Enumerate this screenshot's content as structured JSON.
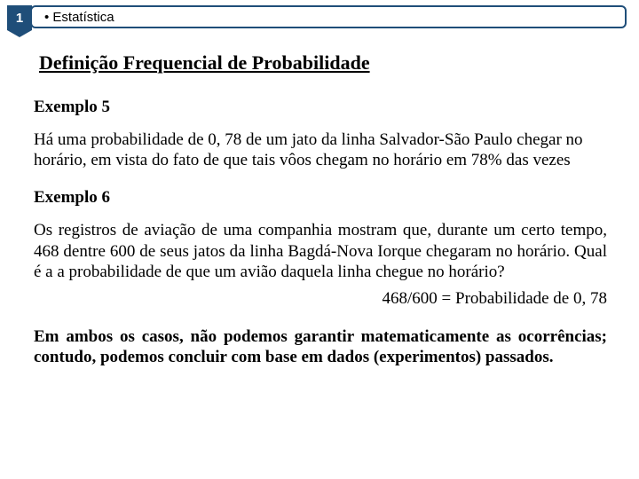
{
  "header": {
    "number": "1",
    "label": "• Estatística"
  },
  "section_title": "Definição Frequencial de Probabilidade",
  "example5": {
    "label": "Exemplo 5",
    "text": "Há uma probabilidade de 0, 78 de um jato da linha Salvador-São Paulo chegar no horário, em vista do fato de que tais vôos chegam no horário em 78% das vezes"
  },
  "example6": {
    "label": "Exemplo 6",
    "text": "Os registros de aviação de uma companhia mostram que, durante um certo tempo, 468 dentre 600 de seus jatos da linha Bagdá-Nova Iorque chegaram no horário. Qual é a a probabilidade de que um avião daquela linha chegue no horário?",
    "calc": "468/600 = Probabilidade de 0, 78"
  },
  "closing": "Em ambos os casos, não podemos garantir matematicamente as ocorrências; contudo, podemos concluir com base em dados (experimentos) passados."
}
